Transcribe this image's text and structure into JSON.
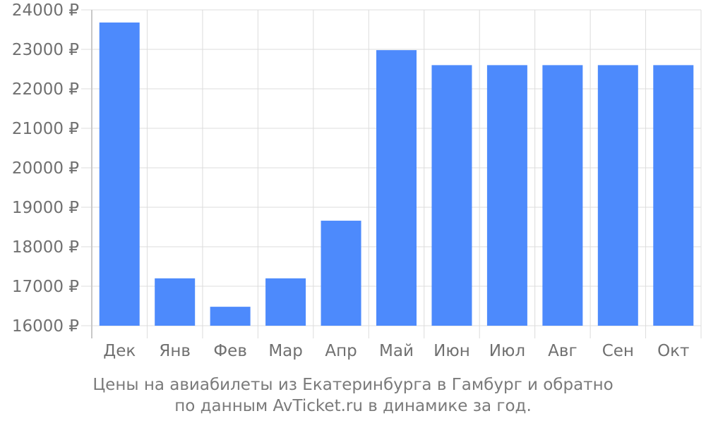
{
  "chart_data": {
    "type": "bar",
    "categories": [
      "Дек",
      "Янв",
      "Фев",
      "Мар",
      "Апр",
      "Май",
      "Июн",
      "Июл",
      "Авг",
      "Сен",
      "Окт"
    ],
    "values": [
      23680,
      17200,
      16480,
      17200,
      18660,
      22980,
      22600,
      22600,
      22600,
      22600,
      22600
    ],
    "ylim": [
      16000,
      24000
    ],
    "yticks": [
      16000,
      17000,
      18000,
      19000,
      20000,
      21000,
      22000,
      23000,
      24000
    ],
    "ytick_labels": [
      "16000 ₽",
      "17000 ₽",
      "18000 ₽",
      "19000 ₽",
      "20000 ₽",
      "21000 ₽",
      "22000 ₽",
      "23000 ₽",
      "24000 ₽"
    ],
    "grid": true,
    "bar_color": "#4d8afc",
    "caption_line1": "Цены на авиабилеты из Екатеринбурга в Гамбург и обратно",
    "caption_line2": "по данным AvTicket.ru в динамике за год."
  }
}
